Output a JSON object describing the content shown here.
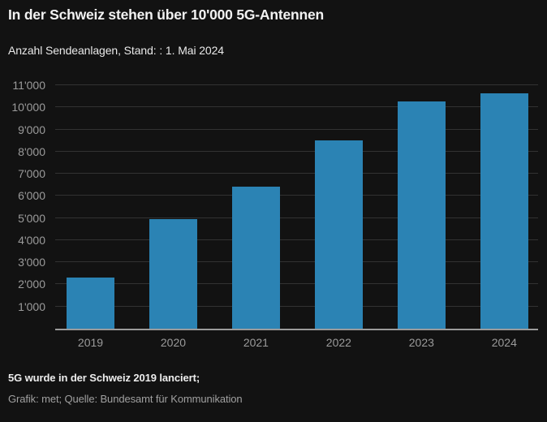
{
  "header": {
    "title": "In der Schweiz stehen über 10'000 5G-Antennen",
    "subtitle": "Anzahl Sendeanlagen, Stand: : 1. Mai 2024"
  },
  "footer": {
    "note": "5G wurde in der Schweiz 2019 lanciert;",
    "credit": "Grafik: met; Quelle: Bundesamt für Kommunikation"
  },
  "colors": {
    "background": "#121212",
    "bar": "#2b83b4",
    "gridline": "#323232",
    "axis_line": "#9b9b9b",
    "tick_label": "#9b9b9b",
    "title_text": "#f2f2f2",
    "credit_text": "#a0a0a0"
  },
  "chart_data": {
    "type": "bar",
    "title": "In der Schweiz stehen über 10'000 5G-Antennen",
    "subtitle": "Anzahl Sendeanlagen, Stand: : 1. Mai 2024",
    "categories": [
      "2019",
      "2020",
      "2021",
      "2022",
      "2023",
      "2024"
    ],
    "values": [
      2300,
      4950,
      6400,
      8500,
      10250,
      10650
    ],
    "xlabel": "",
    "ylabel": "",
    "ylim": [
      0,
      11000
    ],
    "ytick_step": 1000,
    "ytick_labels": [
      "1'000",
      "2'000",
      "3'000",
      "4'000",
      "5'000",
      "6'000",
      "7'000",
      "8'000",
      "9'000",
      "10'000",
      "11'000"
    ],
    "grid": "horizontal",
    "legend": "none",
    "bar_color": "#2b83b4"
  }
}
